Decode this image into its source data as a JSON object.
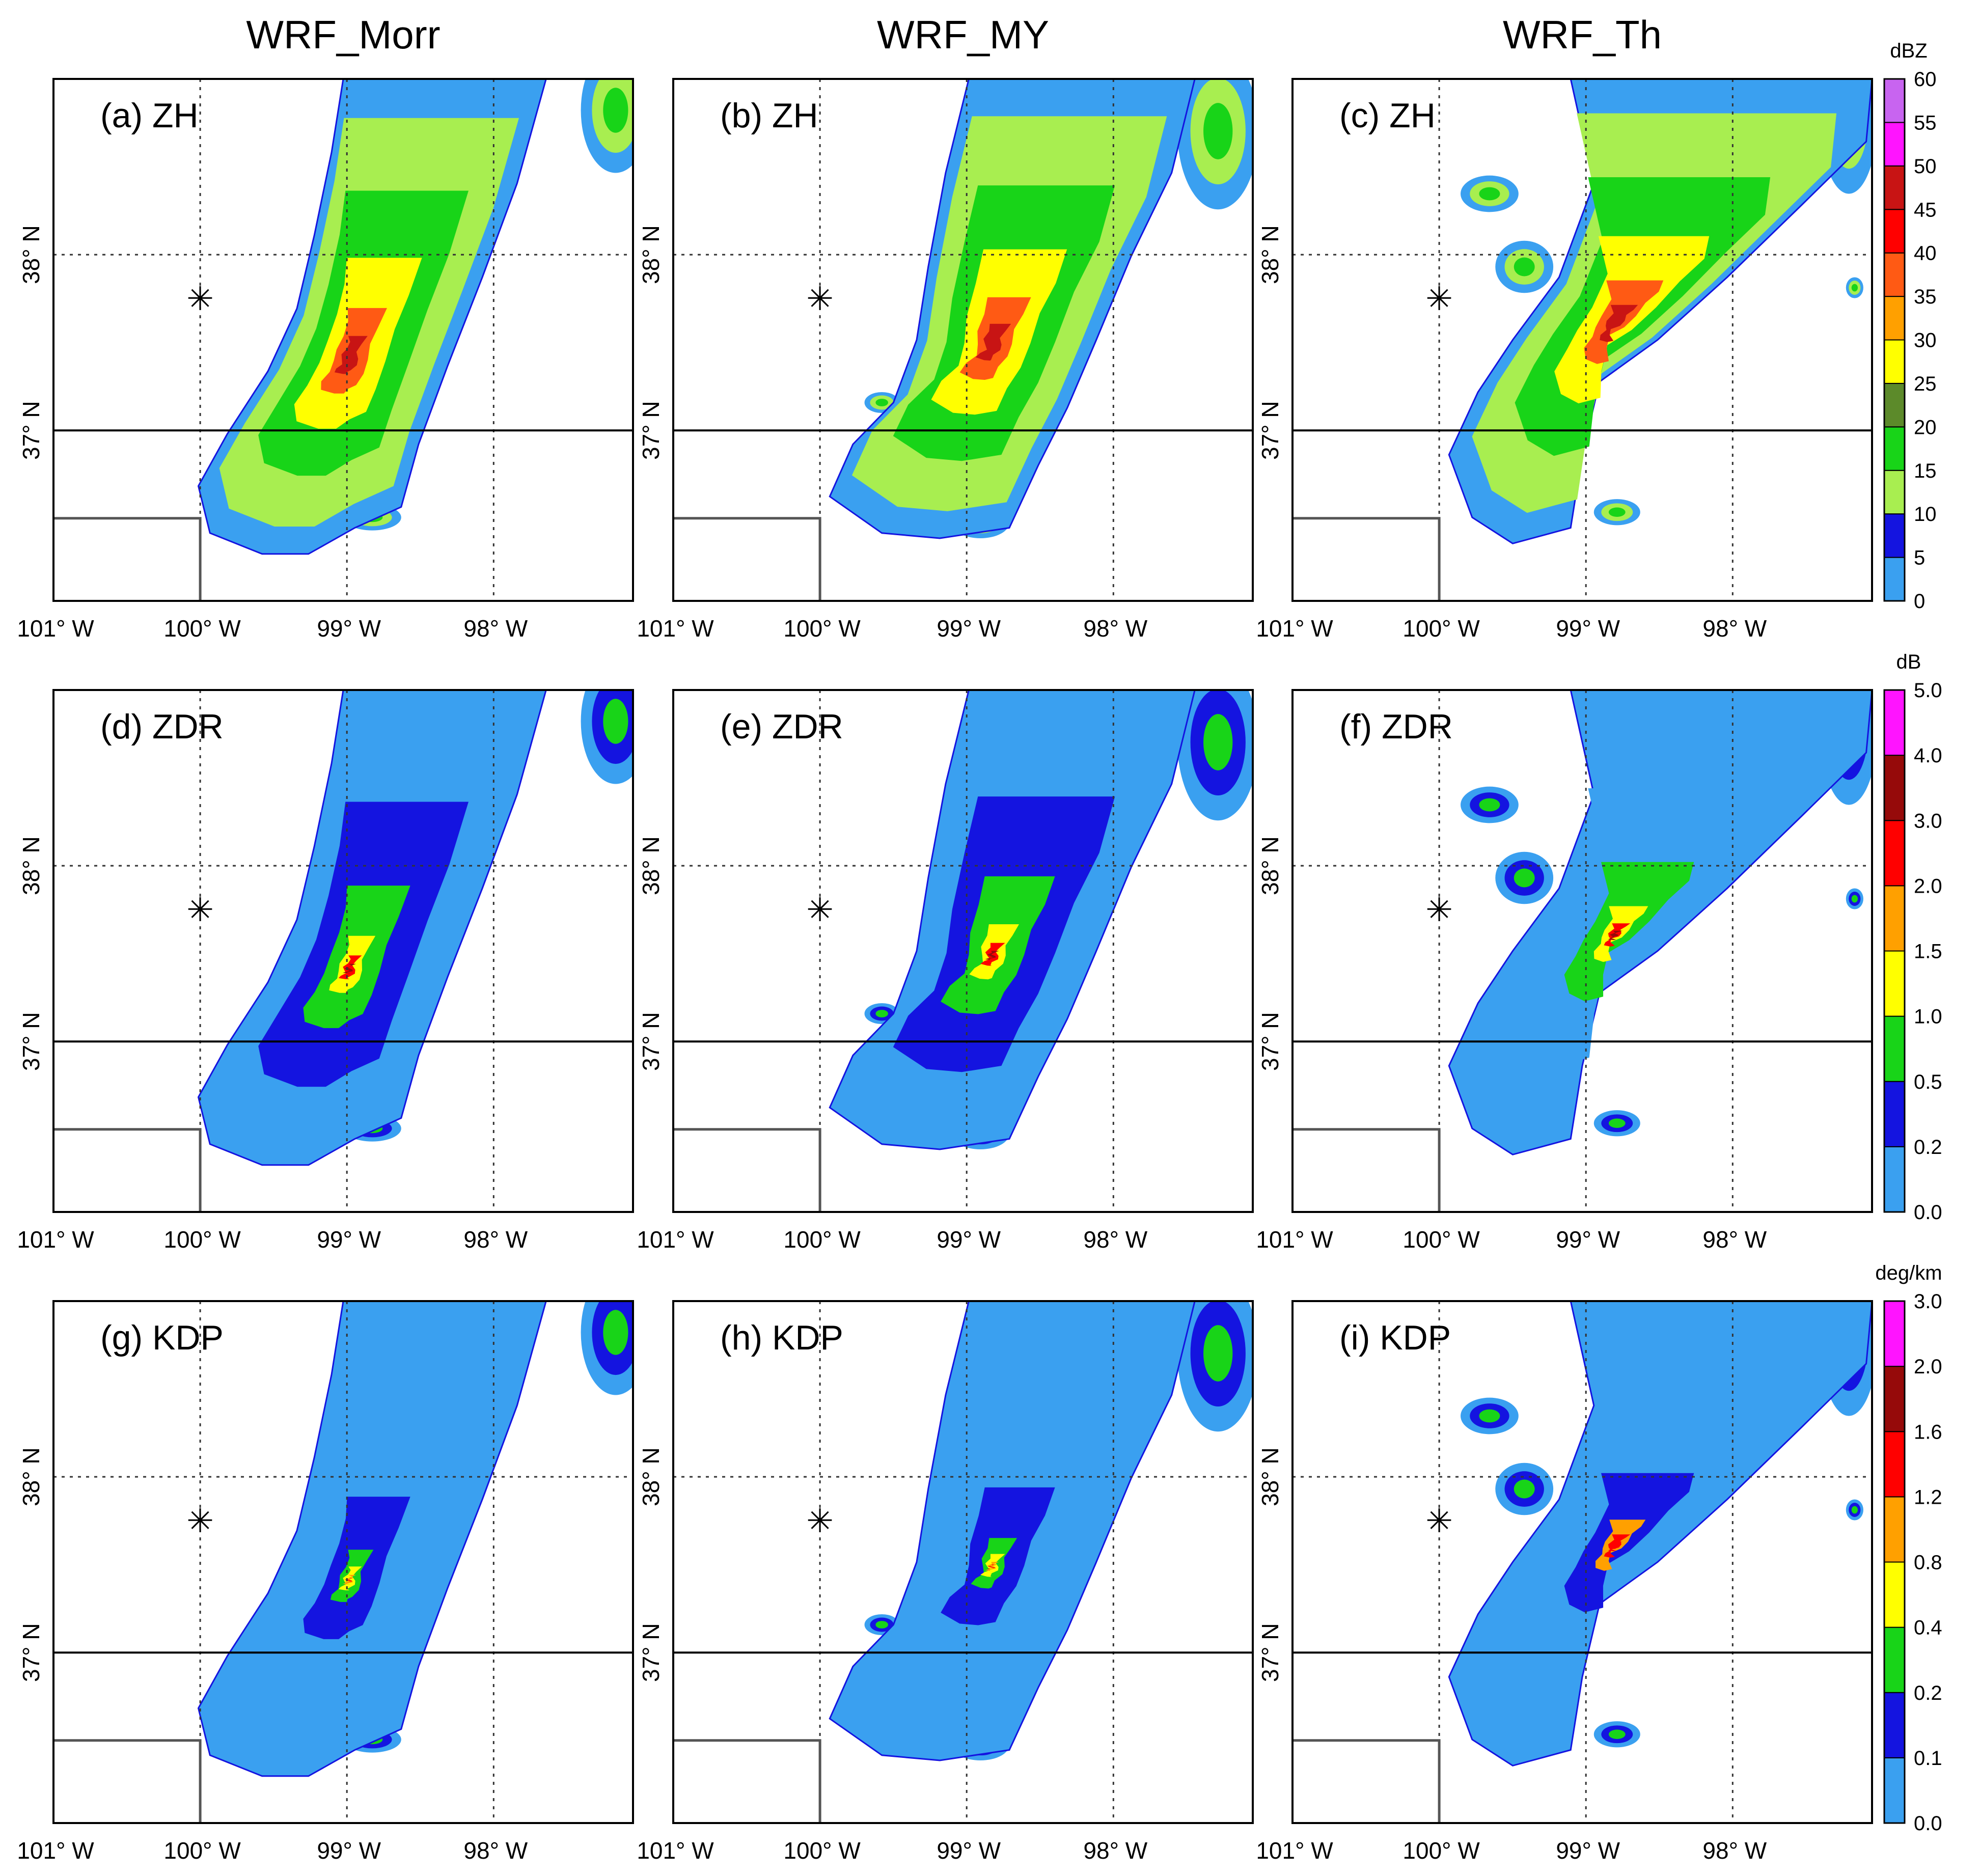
{
  "columns": [
    "WRF_Morr",
    "WRF_MY",
    "WRF_Th"
  ],
  "rows": [
    {
      "variable": "ZH",
      "unit": "dBZ",
      "levels": [
        "0",
        "5",
        "10",
        "15",
        "20",
        "25",
        "30",
        "35",
        "40",
        "45",
        "50",
        "55",
        "60"
      ],
      "colors": [
        "#3aa0f0",
        "#1414e0",
        "#a8ee50",
        "#18d418",
        "#5c8a2a",
        "#ffff00",
        "#ffa000",
        "#ff5a14",
        "#ff0000",
        "#c81414",
        "#ff14ff",
        "#c864f0"
      ],
      "panel_labels": [
        "(a) ZH",
        "(b) ZH",
        "(c) ZH"
      ]
    },
    {
      "variable": "ZDR",
      "unit": "dB",
      "levels": [
        "0.0",
        "0.2",
        "0.5",
        "1.0",
        "1.5",
        "2.0",
        "3.0",
        "4.0",
        "5.0"
      ],
      "colors": [
        "#3aa0f0",
        "#1414e0",
        "#18d418",
        "#ffff00",
        "#ffa000",
        "#ff0000",
        "#960a0a",
        "#ff14ff"
      ],
      "panel_labels": [
        "(d) ZDR",
        "(e) ZDR",
        "(f) ZDR"
      ]
    },
    {
      "variable": "KDP",
      "unit": "deg/km",
      "levels": [
        "0.0",
        "0.1",
        "0.2",
        "0.4",
        "0.8",
        "1.2",
        "1.6",
        "2.0",
        "3.0"
      ],
      "colors": [
        "#3aa0f0",
        "#1414e0",
        "#18d418",
        "#ffff00",
        "#ffa000",
        "#ff0000",
        "#960a0a",
        "#ff14ff"
      ],
      "panel_labels": [
        "(g) KDP",
        "(h) KDP",
        "(i) KDP"
      ]
    }
  ],
  "axes": {
    "lon_ticks": [
      {
        "value": -101,
        "label": "101° W"
      },
      {
        "value": -100,
        "label": "100° W"
      },
      {
        "value": -99,
        "label": "99° W"
      },
      {
        "value": -98,
        "label": "98° W"
      }
    ],
    "lat_ticks": [
      {
        "value": 37,
        "label": "37° N"
      },
      {
        "value": 38,
        "label": "38° N"
      }
    ],
    "lon_range": [
      -101,
      -97.05
    ],
    "lat_range": [
      36.03,
      39.0
    ]
  },
  "map": {
    "site_marker": {
      "lon": -100.0,
      "lat": 37.75,
      "symbol": "✳"
    },
    "state_border_lat": 37.0,
    "corner_box": {
      "lon_east": -100.0,
      "lat_north": 36.5
    }
  }
}
